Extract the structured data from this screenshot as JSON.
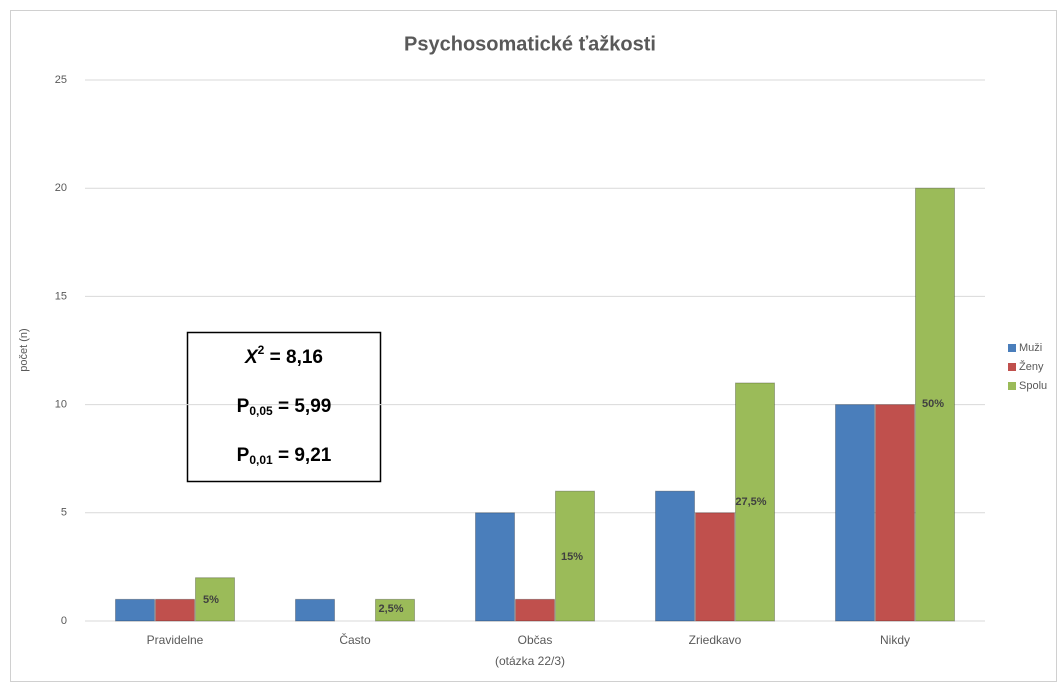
{
  "chart_data": {
    "type": "bar",
    "title": "Psychosomatické ťažkosti",
    "y_label": "počet (n)",
    "x_label": "(otázka 22/3)",
    "categories": [
      "Pravidelne",
      "Často",
      "Občas",
      "Zriedkavo",
      "Nikdy"
    ],
    "series": [
      {
        "name": "Muži",
        "color": "#4a7ebb",
        "values": [
          1,
          1,
          5,
          6,
          10
        ]
      },
      {
        "name": "Ženy",
        "color": "#c0504d",
        "values": [
          1,
          0,
          1,
          5,
          10
        ]
      },
      {
        "name": "Spolu",
        "color": "#9bbb59",
        "values": [
          2,
          1,
          6,
          11,
          20
        ]
      }
    ],
    "annotations": [
      "5%",
      "2,5%",
      "15%",
      "27,5%",
      "50%"
    ],
    "stats": [
      {
        "base": "X",
        "sup": "2",
        "rest": " = 8,16"
      },
      {
        "base": "P",
        "sub": "0,05",
        "rest": " = 5,99"
      },
      {
        "base": "P",
        "sub": "0,01",
        "rest": " = 9,21"
      }
    ],
    "ylim": [
      0,
      25
    ],
    "yticks": [
      0,
      5,
      10,
      15,
      20,
      25
    ],
    "grid": true,
    "legend": "right"
  }
}
